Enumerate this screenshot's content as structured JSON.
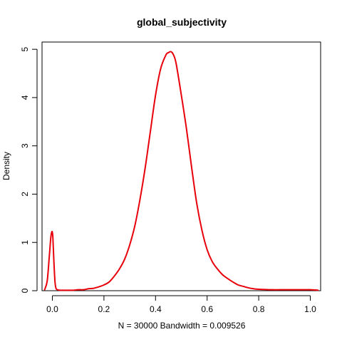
{
  "chart_data": {
    "type": "line",
    "title": "global_subjectivity",
    "xlabel": "N = 30000   Bandwidth = 0.009526",
    "ylabel": "Density",
    "xlim": [
      -0.04,
      1.04
    ],
    "ylim": [
      0,
      5.15
    ],
    "x_ticks": [
      0.0,
      0.2,
      0.4,
      0.6,
      0.8,
      1.0
    ],
    "x_tick_labels": [
      "0.0",
      "0.2",
      "0.4",
      "0.6",
      "0.8",
      "1.0"
    ],
    "y_ticks": [
      0,
      1,
      2,
      3,
      4,
      5
    ],
    "y_tick_labels": [
      "0",
      "1",
      "2",
      "3",
      "4",
      "5"
    ],
    "grid": false,
    "series": [
      {
        "color": "#e8000b",
        "x": [
          -0.03,
          -0.02,
          -0.012,
          -0.006,
          -0.002,
          0.0,
          0.002,
          0.006,
          0.01,
          0.014,
          0.02,
          0.03,
          0.05,
          0.08,
          0.1,
          0.12,
          0.14,
          0.16,
          0.18,
          0.2,
          0.22,
          0.24,
          0.26,
          0.28,
          0.3,
          0.32,
          0.34,
          0.36,
          0.38,
          0.4,
          0.42,
          0.44,
          0.45,
          0.46,
          0.47,
          0.48,
          0.5,
          0.52,
          0.54,
          0.56,
          0.58,
          0.6,
          0.62,
          0.64,
          0.66,
          0.68,
          0.7,
          0.72,
          0.74,
          0.76,
          0.78,
          0.8,
          0.85,
          0.9,
          0.95,
          1.0,
          1.03
        ],
        "y": [
          0.02,
          0.2,
          0.7,
          1.1,
          1.22,
          1.2,
          1.1,
          0.6,
          0.2,
          0.05,
          0.02,
          0.01,
          0.01,
          0.01,
          0.02,
          0.02,
          0.04,
          0.05,
          0.08,
          0.12,
          0.18,
          0.3,
          0.45,
          0.65,
          0.95,
          1.35,
          1.9,
          2.55,
          3.3,
          4.05,
          4.6,
          4.88,
          4.93,
          4.95,
          4.88,
          4.7,
          4.05,
          3.35,
          2.55,
          1.8,
          1.25,
          0.85,
          0.6,
          0.45,
          0.33,
          0.25,
          0.18,
          0.12,
          0.09,
          0.06,
          0.04,
          0.03,
          0.02,
          0.02,
          0.02,
          0.02,
          0.01
        ]
      }
    ]
  }
}
